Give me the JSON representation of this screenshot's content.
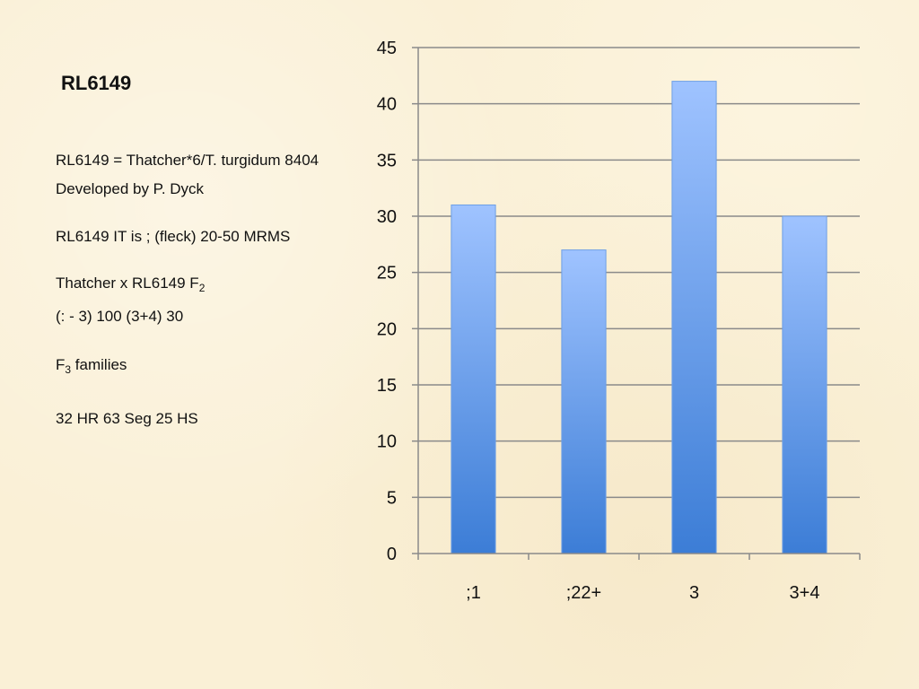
{
  "slide": {
    "title": "RL6149",
    "line1": "RL6149 = Thatcher*6/T. turgidum 8404",
    "line2": "Developed by P.  Dyck",
    "line3": "RL6149 IT is ; (fleck) 20-50 MRMS",
    "line4_main": "Thatcher x RL6149 F",
    "line4_sub": "2",
    "line5": "(: - 3) 100 (3+4) 30",
    "line6_main": "F",
    "line6_sub": "3",
    "line6_rest": " families",
    "line7": "32 HR 63 Seg  25 HS"
  },
  "chart_data": {
    "type": "bar",
    "categories": [
      ";1",
      ";22+",
      "3",
      "3+4"
    ],
    "values": [
      31,
      27,
      42,
      30
    ],
    "title": "",
    "xlabel": "",
    "ylabel": "",
    "ylim": [
      0,
      45
    ],
    "yticks": [
      0,
      5,
      10,
      15,
      20,
      25,
      30,
      35,
      40,
      45
    ],
    "grid": true,
    "colors": {
      "bar_top": "#9fc3ff",
      "bar_bottom": "#3c7dd6",
      "grid": "#8a8a8a",
      "axis": "#8a8a8a"
    }
  }
}
